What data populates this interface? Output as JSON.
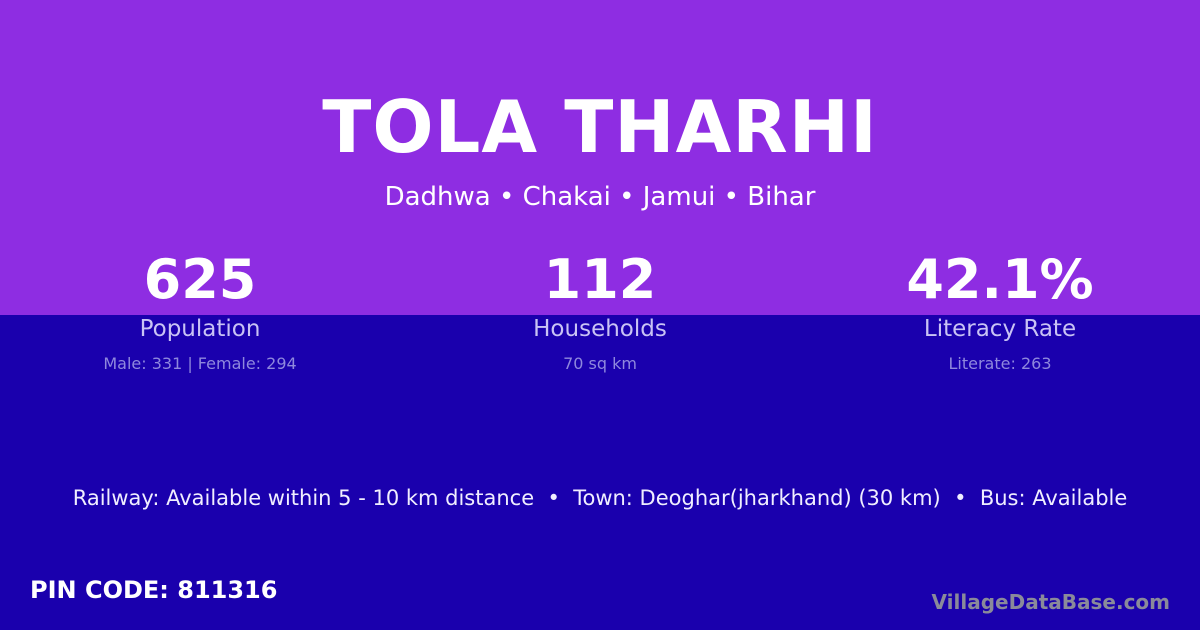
{
  "village": {
    "name": "TOLA THARHI",
    "location": "Dadhwa • Chakai • Jamui • Bihar"
  },
  "stats": [
    {
      "value": "625",
      "label": "Population",
      "detail": "Male: 331 | Female: 294"
    },
    {
      "value": "112",
      "label": "Households",
      "detail": "70 sq km"
    },
    {
      "value": "42.1%",
      "label": "Literacy Rate",
      "detail": "Literate: 263"
    }
  ],
  "facilities": "Railway: Available within 5 - 10 km distance  •  Town: Deoghar(jharkhand) (30 km)  •  Bus: Available",
  "pin_code": "PIN CODE: 811316",
  "brand": "VillageDataBase.com",
  "colors": {
    "top": "#8e2de2",
    "bottom": "#1a00ad"
  }
}
